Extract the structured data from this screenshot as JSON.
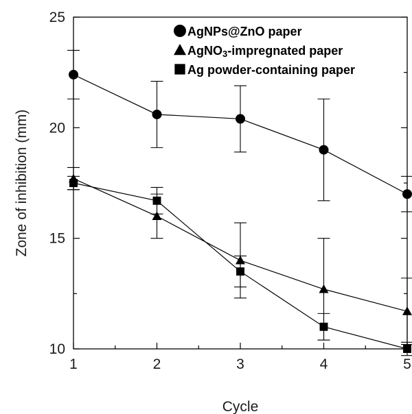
{
  "chart_data": {
    "type": "line",
    "x": [
      1,
      2,
      3,
      4,
      5
    ],
    "xlabel": "Cycle",
    "ylabel": "Zone of inhibition (mm)",
    "xlim": [
      1,
      5
    ],
    "ylim": [
      10,
      25
    ],
    "xticks": [
      "1",
      "2",
      "3",
      "4",
      "5"
    ],
    "yticks": [
      "10",
      "15",
      "20",
      "25"
    ],
    "grid": false,
    "legend_position": "top-right",
    "series": [
      {
        "name": "AgNPs@ZnO paper",
        "legend_parts": [
          "AgNPs@ZnO paper"
        ],
        "marker": "circle",
        "values": [
          22.4,
          20.6,
          20.4,
          19.0,
          17.0
        ],
        "errors": [
          1.1,
          1.5,
          1.5,
          2.3,
          0.8
        ]
      },
      {
        "name": "AgNO3-impregnated paper",
        "legend_parts": [
          "AgNO",
          "3",
          "-impregnated paper"
        ],
        "marker": "triangle",
        "values": [
          17.7,
          16.0,
          14.0,
          12.7,
          11.7
        ],
        "errors": [
          0.5,
          1.0,
          1.7,
          2.3,
          1.5
        ]
      },
      {
        "name": "Ag powder-containing paper",
        "legend_parts": [
          "Ag powder-containing paper"
        ],
        "marker": "square",
        "values": [
          17.5,
          16.7,
          13.5,
          11.0,
          10.0
        ],
        "errors": [
          0.3,
          0.6,
          0.7,
          0.6,
          0.3
        ]
      }
    ]
  }
}
